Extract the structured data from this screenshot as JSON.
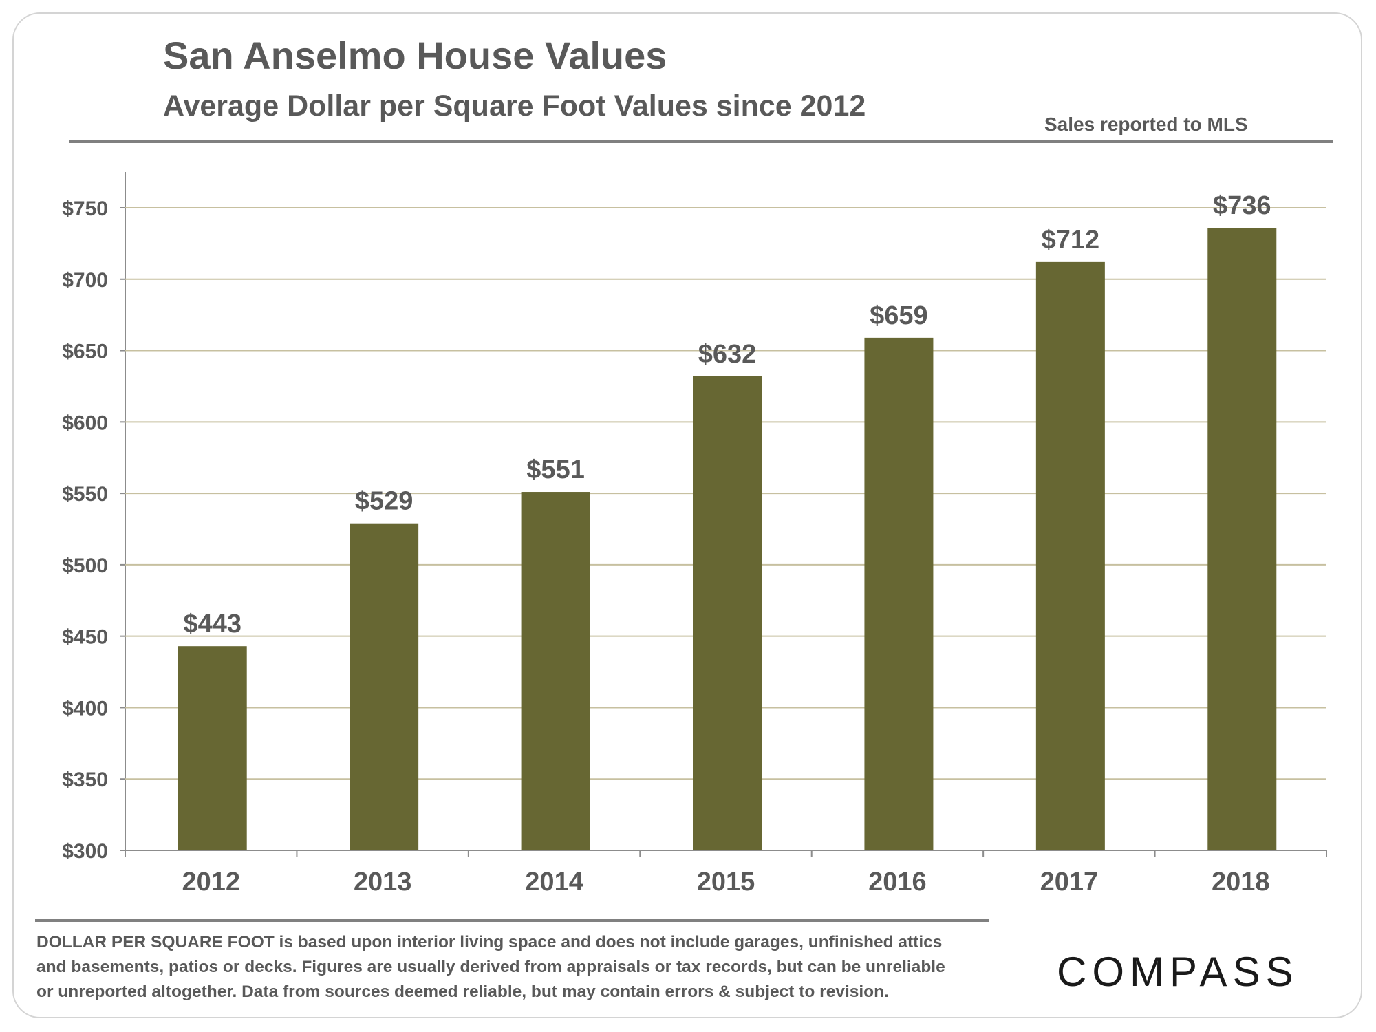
{
  "header": {
    "title": "San Anselmo House Values",
    "subtitle": "Average Dollar per Square Foot Values since 2012",
    "source_note": "Sales reported to MLS"
  },
  "footer": {
    "footnote_lead": "DOLLAR PER SQUARE FOOT",
    "footnote_line1_rest": " is based upon interior living space and does not include garages, unfinished attics",
    "footnote_line2": "and basements, patios or decks. Figures are usually derived from appraisals or tax records, but can be unreliable",
    "footnote_line3": "or unreported altogether. Data from sources deemed reliable, but may contain errors & subject to revision.",
    "logo_text": "COMPASS"
  },
  "colors": {
    "bar": "#676733",
    "gridline": "#c7c0a0",
    "text": "#595959",
    "axis": "#8c8c8c"
  },
  "chart_data": {
    "type": "bar",
    "title": "San Anselmo House Values",
    "subtitle": "Average Dollar per Square Foot Values since 2012",
    "categories": [
      "2012",
      "2013",
      "2014",
      "2015",
      "2016",
      "2017",
      "2018"
    ],
    "values": [
      443,
      529,
      551,
      632,
      659,
      712,
      736
    ],
    "value_labels": [
      "$443",
      "$529",
      "$551",
      "$632",
      "$659",
      "$712",
      "$736"
    ],
    "ylim": [
      300,
      750
    ],
    "yticks": [
      300,
      350,
      400,
      450,
      500,
      550,
      600,
      650,
      700,
      750
    ],
    "ytick_labels": [
      "$300",
      "$350",
      "$400",
      "$450",
      "$500",
      "$550",
      "$600",
      "$650",
      "$700",
      "$750"
    ],
    "xlabel": "",
    "ylabel": "",
    "grid": true,
    "legend": "none"
  }
}
